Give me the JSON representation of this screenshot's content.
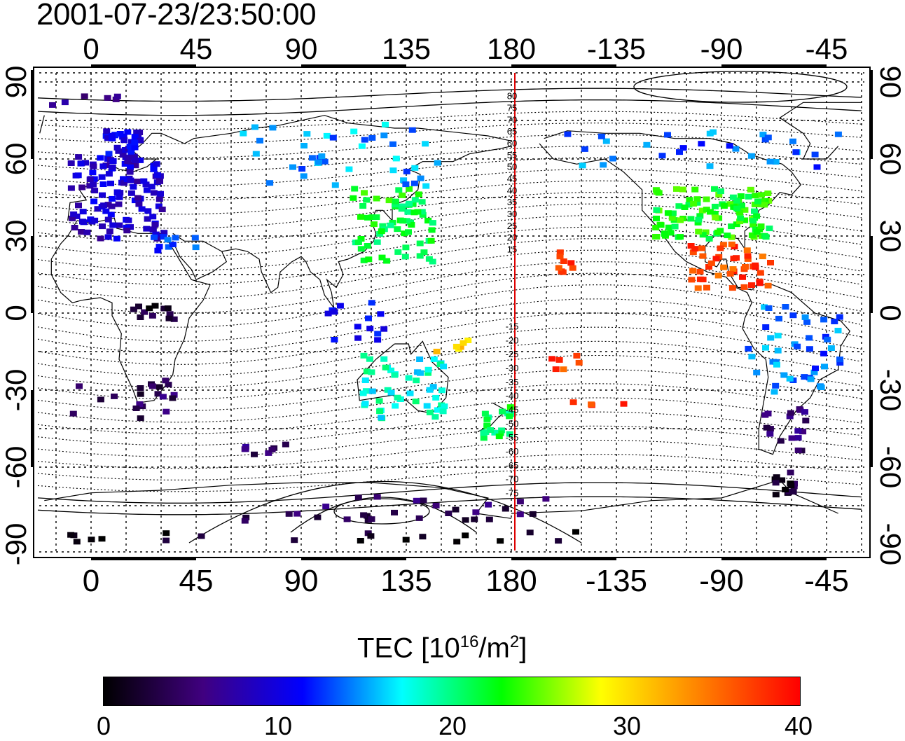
{
  "title": "2001-07-23/23:50:00",
  "map": {
    "top_lon_labels": [
      "0",
      "45",
      "90",
      "135",
      "180",
      "-135",
      "-90",
      "-45"
    ],
    "bottom_lon_labels": [
      "0",
      "45",
      "90",
      "135",
      "180",
      "-135",
      "-90",
      "-45"
    ],
    "left_lat_labels": [
      "90",
      "60",
      "30",
      "0",
      "-30",
      "-60",
      "-90"
    ],
    "right_lat_labels": [
      "90",
      "60",
      "30",
      "0",
      "-30",
      "-60",
      "-90"
    ],
    "meridian_line_color": "#dd0000",
    "meridian_labels": [
      "80",
      "75",
      "70",
      "65",
      "60",
      "55",
      "50",
      "45",
      "40",
      "35",
      "30",
      "25",
      "20",
      "15",
      "-15",
      "-20",
      "-25",
      "-30",
      "-35",
      "-40",
      "-45",
      "-50",
      "-55",
      "-60",
      "-65",
      "-70",
      "-75"
    ]
  },
  "colorbar": {
    "label_main": "TEC  [10",
    "label_sup1": "16",
    "label_mid": "/m",
    "label_sup2": "2",
    "label_end": "]",
    "min": 0,
    "max": 40,
    "tick_labels": [
      "0",
      "10",
      "20",
      "30",
      "40"
    ],
    "colors": [
      "#000000",
      "#400080",
      "#0000ff",
      "#00ffff",
      "#00ff00",
      "#ffff00",
      "#ff8000",
      "#ff0000"
    ]
  }
}
